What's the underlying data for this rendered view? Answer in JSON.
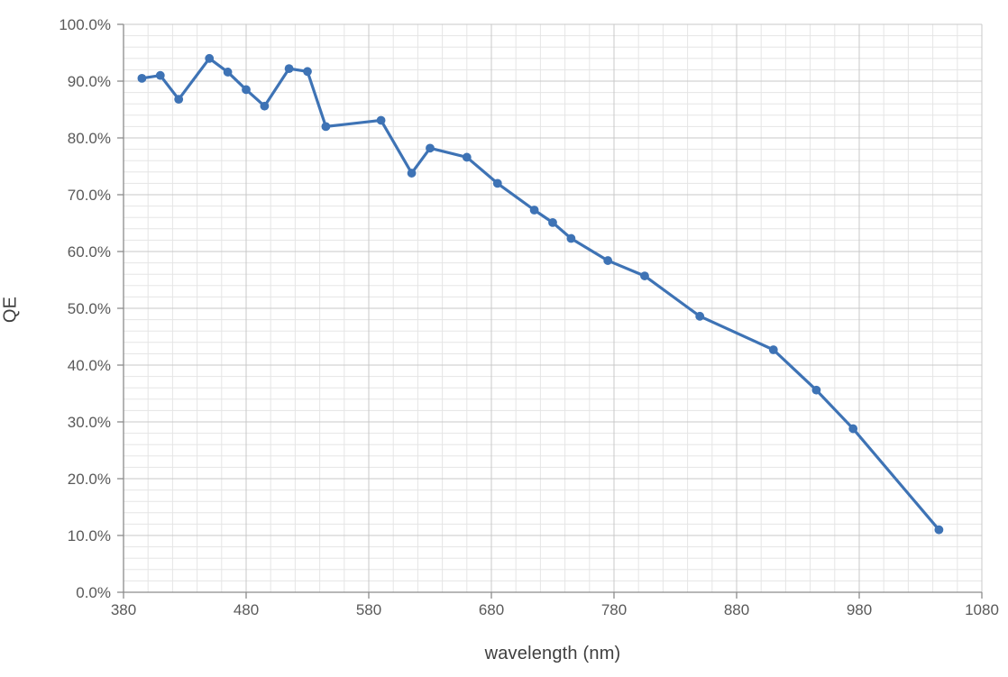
{
  "page": {
    "background": "#ffffff"
  },
  "style_colors": {
    "series_line": "#3e73b5",
    "axis_line": "#8c8c8c",
    "major_grid": "#c9c9c9",
    "minor_grid": "#e5e5e5",
    "tick_label": "#595959",
    "axis_title": "#3f3f3f"
  },
  "chart_data": {
    "type": "line",
    "title": "",
    "xlabel": "wavelength (nm)",
    "ylabel": "QE",
    "legend": "none",
    "grid": {
      "major": true,
      "minor": true
    },
    "x_axis": {
      "min": 380,
      "max": 1080,
      "major_step": 100,
      "minor_step": 20,
      "tick_values": [
        380,
        480,
        580,
        680,
        780,
        880,
        980,
        1080
      ],
      "tick_labels": [
        "380",
        "480",
        "580",
        "680",
        "780",
        "880",
        "980",
        "1080"
      ]
    },
    "y_axis": {
      "min": 0,
      "max": 100,
      "unit": "%",
      "major_step": 10,
      "minor_step": 2,
      "tick_values": [
        0,
        10,
        20,
        30,
        40,
        50,
        60,
        70,
        80,
        90,
        100
      ],
      "tick_labels": [
        "0.0%",
        "10.0%",
        "20.0%",
        "30.0%",
        "40.0%",
        "50.0%",
        "60.0%",
        "70.0%",
        "80.0%",
        "90.0%",
        "100.0%"
      ]
    },
    "series": [
      {
        "name": "QE",
        "color": "#3e73b5",
        "marker": "circle",
        "points": [
          [
            395,
            90.5
          ],
          [
            410,
            91.0
          ],
          [
            425,
            86.8
          ],
          [
            450,
            94.0
          ],
          [
            465,
            91.6
          ],
          [
            480,
            88.5
          ],
          [
            495,
            85.6
          ],
          [
            515,
            92.2
          ],
          [
            530,
            91.7
          ],
          [
            545,
            82.0
          ],
          [
            590,
            83.1
          ],
          [
            615,
            73.8
          ],
          [
            630,
            78.2
          ],
          [
            660,
            76.6
          ],
          [
            685,
            72.0
          ],
          [
            715,
            67.3
          ],
          [
            730,
            65.1
          ],
          [
            745,
            62.3
          ],
          [
            775,
            58.4
          ],
          [
            805,
            55.7
          ],
          [
            850,
            48.6
          ],
          [
            910,
            42.7
          ],
          [
            945,
            35.6
          ],
          [
            975,
            28.8
          ],
          [
            1045,
            11.0
          ]
        ]
      }
    ]
  }
}
